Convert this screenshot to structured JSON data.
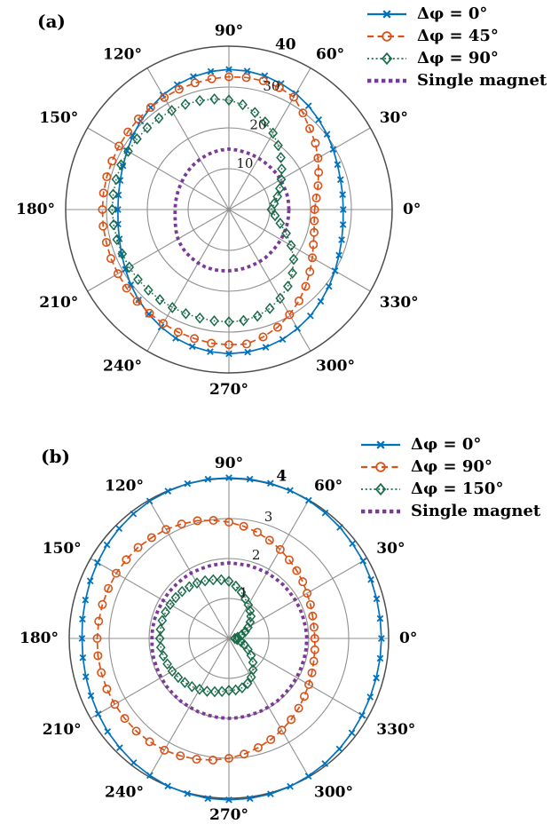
{
  "figure": {
    "panels": [
      {
        "label": "(a)"
      },
      {
        "label": "(b)"
      }
    ],
    "background": "#ffffff",
    "text_color": "#000000"
  },
  "chart_data": [
    {
      "type": "line",
      "subtype": "polar",
      "panel_label": "(a)",
      "angle_start_deg": 0,
      "angle_step_deg": 7.5,
      "theta_ticks_deg": [
        0,
        30,
        60,
        90,
        120,
        150,
        180,
        210,
        240,
        270,
        300,
        330
      ],
      "theta_tick_labels": [
        "0°",
        "30°",
        "60°",
        "90°",
        "120°",
        "150°",
        "180°",
        "210°",
        "240°",
        "270°",
        "300°",
        "330°"
      ],
      "r_ticks": [
        10,
        20,
        30,
        40
      ],
      "r_tick_labels": [
        "10",
        "20",
        "30",
        "40"
      ],
      "r_max": 40,
      "grid_color": "#8f8f8f",
      "axis_color": "#4d4d4d",
      "legend_position": "top-right",
      "series": [
        {
          "name": "Δφ = 0°",
          "color": "#0072BD",
          "line": "solid",
          "marker": "x",
          "values": [
            28.0,
            28.1,
            28.3,
            28.8,
            29.5,
            30.3,
            31.1,
            32.0,
            32.8,
            33.4,
            33.9,
            34.2,
            34.3,
            34.1,
            33.7,
            33.1,
            32.4,
            31.5,
            30.6,
            29.7,
            28.8,
            28.1,
            27.6,
            27.3,
            27.2,
            27.4,
            27.8,
            28.5,
            29.3,
            30.3,
            31.3,
            32.3,
            33.2,
            34.1,
            34.7,
            35.1,
            35.3,
            35.2,
            34.9,
            34.4,
            33.6,
            32.8,
            31.8,
            30.9,
            30.0,
            29.2,
            28.6,
            28.2
          ]
        },
        {
          "name": "Δφ = 45°",
          "color": "#D95319",
          "line": "dashed",
          "marker": "circle",
          "values": [
            21.0,
            21.6,
            22.6,
            23.8,
            25.2,
            26.7,
            28.0,
            29.8,
            31.8,
            32.3,
            32.6,
            32.6,
            32.5,
            32.3,
            32.1,
            31.9,
            31.7,
            31.5,
            31.4,
            31.2,
            31.1,
            31.0,
            31.0,
            31.0,
            31.0,
            31.1,
            31.1,
            31.3,
            31.4,
            31.6,
            31.8,
            32.0,
            32.2,
            32.5,
            32.7,
            33.0,
            33.1,
            33.2,
            32.3,
            31.2,
            29.7,
            28.2,
            26.6,
            25.0,
            23.6,
            22.4,
            21.6,
            21.1
          ]
        },
        {
          "name": "Δφ = 90°",
          "color": "#1A6B4A",
          "line": "dotted",
          "marker": "diamond",
          "values": [
            10.4,
            11.2,
            12.3,
            13.5,
            14.8,
            16.3,
            18.0,
            19.8,
            21.6,
            23.2,
            24.6,
            25.9,
            26.8,
            27.3,
            27.6,
            27.9,
            28.0,
            28.2,
            28.3,
            28.4,
            28.5,
            28.6,
            28.6,
            28.6,
            28.6,
            28.5,
            28.4,
            28.3,
            28.2,
            28.1,
            27.9,
            27.8,
            27.7,
            27.6,
            27.5,
            27.5,
            27.5,
            27.4,
            27.0,
            26.2,
            25.1,
            23.7,
            22.0,
            20.0,
            17.6,
            15.2,
            13.0,
            11.4
          ]
        },
        {
          "name": "Single magnet",
          "color": "#7B3A96",
          "line": "dotted-bold",
          "marker": "none",
          "values": [
            14.7,
            14.7,
            14.7,
            14.6,
            14.6,
            14.6,
            14.5,
            14.5,
            14.5,
            14.6,
            14.6,
            14.7,
            14.8,
            14.7,
            14.6,
            14.4,
            14.2,
            14.0,
            13.8,
            13.6,
            13.4,
            13.3,
            13.2,
            13.2,
            13.2,
            13.3,
            13.6,
            14.0,
            14.4,
            14.7,
            14.9,
            15.0,
            15.1,
            15.2,
            15.2,
            15.1,
            15.0,
            14.9,
            14.9,
            14.8,
            14.8,
            14.8,
            14.7,
            14.7,
            14.7,
            14.7,
            14.7,
            14.7
          ]
        }
      ]
    },
    {
      "type": "line",
      "subtype": "polar",
      "panel_label": "(b)",
      "angle_start_deg": 0,
      "angle_step_deg": 7.5,
      "theta_ticks_deg": [
        0,
        30,
        60,
        90,
        120,
        150,
        180,
        210,
        240,
        270,
        300,
        330
      ],
      "theta_tick_labels": [
        "0°",
        "30°",
        "60°",
        "90°",
        "120°",
        "150°",
        "180°",
        "210°",
        "240°",
        "270°",
        "300°",
        "330°"
      ],
      "r_ticks": [
        1,
        2,
        3,
        4
      ],
      "r_tick_labels": [
        "1",
        "2",
        "3",
        "4"
      ],
      "r_max": 4,
      "grid_color": "#8f8f8f",
      "axis_color": "#4d4d4d",
      "legend_position": "top-right",
      "series": [
        {
          "name": "Δφ = 0°",
          "color": "#0072BD",
          "line": "solid",
          "marker": "x",
          "values": [
            3.82,
            3.82,
            3.83,
            3.85,
            3.88,
            3.9,
            3.93,
            3.96,
            3.99,
            4.01,
            4.02,
            4.02,
            4.02,
            4.02,
            4.01,
            3.99,
            3.97,
            3.93,
            3.89,
            3.85,
            3.8,
            3.76,
            3.72,
            3.7,
            3.68,
            3.69,
            3.71,
            3.74,
            3.78,
            3.83,
            3.87,
            3.92,
            3.96,
            4.0,
            4.02,
            4.04,
            4.04,
            4.04,
            4.03,
            4.01,
            3.98,
            3.95,
            3.91,
            3.88,
            3.85,
            3.83,
            3.82,
            3.82
          ]
        },
        {
          "name": "Δφ = 90°",
          "color": "#D95319",
          "line": "dashed",
          "marker": "circle",
          "values": [
            2.15,
            2.15,
            2.17,
            2.21,
            2.26,
            2.33,
            2.4,
            2.48,
            2.57,
            2.66,
            2.75,
            2.83,
            2.91,
            2.98,
            3.05,
            3.1,
            3.15,
            3.18,
            3.22,
            3.24,
            3.26,
            3.27,
            3.28,
            3.29,
            3.3,
            3.31,
            3.31,
            3.31,
            3.3,
            3.29,
            3.28,
            3.26,
            3.23,
            3.18,
            3.13,
            3.07,
            3.0,
            2.92,
            2.83,
            2.74,
            2.65,
            2.56,
            2.47,
            2.38,
            2.31,
            2.25,
            2.2,
            2.17
          ]
        },
        {
          "name": "Δφ = 150°",
          "color": "#1A6B4A",
          "line": "dotted",
          "marker": "diamond",
          "values": [
            0.15,
            0.22,
            0.33,
            0.44,
            0.55,
            0.67,
            0.78,
            0.87,
            0.97,
            1.07,
            1.2,
            1.32,
            1.43,
            1.48,
            1.52,
            1.56,
            1.6,
            1.63,
            1.66,
            1.68,
            1.7,
            1.72,
            1.73,
            1.73,
            1.73,
            1.72,
            1.7,
            1.67,
            1.64,
            1.6,
            1.56,
            1.52,
            1.47,
            1.43,
            1.38,
            1.34,
            1.3,
            1.3,
            1.28,
            1.22,
            1.12,
            0.99,
            0.85,
            0.7,
            0.55,
            0.42,
            0.31,
            0.21
          ]
        },
        {
          "name": "Single magnet",
          "color": "#7B3A96",
          "line": "dotted-bold",
          "marker": "none",
          "values": [
            1.95,
            1.94,
            1.93,
            1.93,
            1.92,
            1.91,
            1.91,
            1.9,
            1.9,
            1.89,
            1.89,
            1.88,
            1.89,
            1.88,
            1.88,
            1.88,
            1.89,
            1.89,
            1.89,
            1.9,
            1.9,
            1.91,
            1.92,
            1.93,
            1.93,
            1.94,
            1.95,
            1.95,
            1.96,
            1.97,
            1.97,
            1.98,
            1.98,
            1.99,
            1.99,
            2.0,
            2.0,
            2.0,
            1.99,
            1.99,
            1.98,
            1.98,
            1.97,
            1.96,
            1.96,
            1.95,
            1.95,
            1.95
          ]
        }
      ]
    }
  ]
}
